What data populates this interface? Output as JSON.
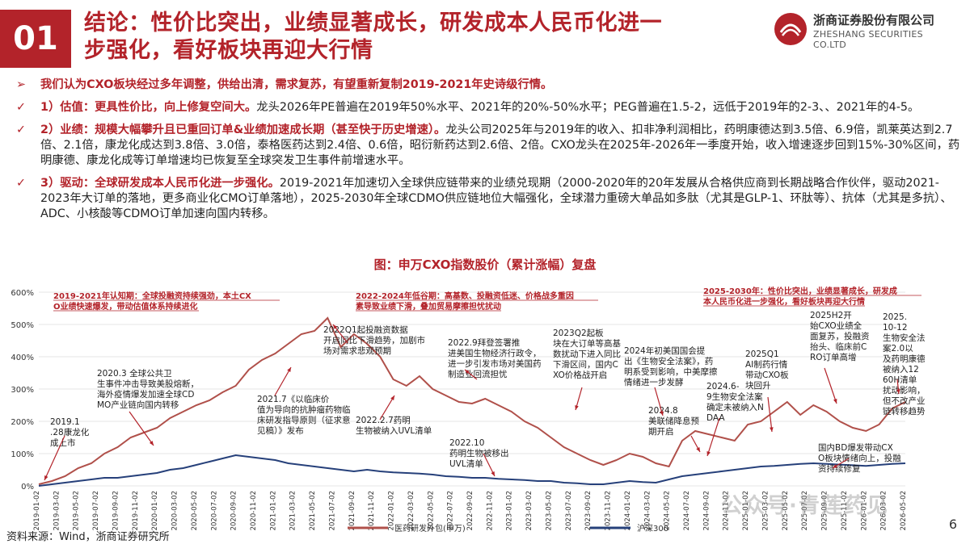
{
  "header": {
    "badge": "01",
    "title_line1": "结论：性价比突出，业绩显著成长，研发成本人民币化进一",
    "title_line2": "步强化，看好板块再迎大行情",
    "logo_name": "浙商证券股份有限公司",
    "logo_en": "ZHESHANG SECURITIES CO.LTD"
  },
  "bullets": [
    {
      "check": "➢",
      "head": "我们认为CXO板块经过多年调整，供给出清，需求复苏，有望重新复制2019-2021年史诗级行情。",
      "body": ""
    },
    {
      "check": "✓",
      "head": "1）估值：更具性价比，向上修复空间大。",
      "body": "龙头2026年PE普遍在2019年50%水平、2021年的20%-50%水平；PEG普遍在1.5-2，远低于2019年的2-3、、2021年的4-5。"
    },
    {
      "check": "✓",
      "head": "2）业绩：规模大幅攀升且已重回订单&业绩加速成长期（甚至快于历史增速）。",
      "body": "龙头公司2025年与2019年的收入、扣非净利润相比，药明康德达到3.5倍、6.9倍，凯莱英达到2.7倍、2.1倍，康龙化成达到3.8倍、3.0倍，泰格医药达到2.4倍、0.6倍，昭衍新药达到2.6倍、2倍。CXO龙头在2025年-2026年一季度开始，收入增速逐步回到15%-30%区间，药明康德、康龙化成等订单增速均已恢复至全球突发卫生事件前增速水平。"
    },
    {
      "check": "✓",
      "head": "3）驱动：全球研发成本人民币化进一步强化。",
      "body": "2019-2021年加速切入全球供应链带来的业绩兑现期（2000-2020年的20年发展从合格供应商到长期战略合作伙伴，驱动2021-2023年大订单的落地，更多商业化CMO订单落地），2025-2030年全球CDMO供应链地位大幅强化，全球潜力重磅大单品如多肽（尤其是GLP-1、环肽等）、抗体（尤其是多抗）、ADC、小核酸等CDMO订单加速向国内转移。"
    }
  ],
  "chart_title": "图：申万CXO指数股价（累计涨幅）复盘",
  "chart_data": {
    "type": "line",
    "yticks": [
      "600%",
      "500%",
      "400%",
      "300%",
      "200%",
      "100%",
      "0%"
    ],
    "ylim": [
      0,
      600
    ],
    "xticks": [
      "2019-01-02",
      "2019-03-02",
      "2019-05-02",
      "2019-07-02",
      "2019-09-02",
      "2019-11-02",
      "2020-01-02",
      "2020-03-02",
      "2020-05-02",
      "2020-07-02",
      "2020-09-02",
      "2020-11-02",
      "2021-01-02",
      "2021-03-02",
      "2021-05-02",
      "2021-07-02",
      "2021-09-02",
      "2021-11-02",
      "2022-01-02",
      "2022-03-02",
      "2022-05-02",
      "2022-07-02",
      "2022-09-02",
      "2022-11-02",
      "2023-01-02",
      "2023-03-02",
      "2023-05-02",
      "2023-07-02",
      "2023-09-02",
      "2023-11-02",
      "2024-01-02",
      "2024-03-02",
      "2024-05-02",
      "2024-07-02",
      "2024-09-02",
      "2024-11-02",
      "2025-01-02",
      "2025-03-02",
      "2025-05-02",
      "2025-07-02",
      "2025-09-02",
      "2025-11-02",
      "2026-01-02",
      "2026-03-02",
      "2026-05-02"
    ],
    "series": [
      {
        "name": "医药研发外包(申万)",
        "color": "#b0504a",
        "values": [
          5,
          15,
          30,
          55,
          70,
          100,
          120,
          150,
          165,
          180,
          210,
          230,
          250,
          265,
          290,
          310,
          360,
          390,
          410,
          440,
          470,
          480,
          520,
          430,
          470,
          440,
          400,
          330,
          310,
          340,
          300,
          280,
          260,
          255,
          270,
          250,
          230,
          200,
          180,
          150,
          120,
          100,
          80,
          65,
          80,
          100,
          90,
          70,
          60,
          140,
          170,
          160,
          150,
          140,
          190,
          200,
          230,
          260,
          220,
          250,
          230,
          200,
          180,
          170,
          190,
          240,
          260
        ]
      },
      {
        "name": "沪深300",
        "color": "#26407a",
        "values": [
          0,
          5,
          10,
          15,
          20,
          25,
          25,
          30,
          35,
          40,
          50,
          55,
          65,
          75,
          85,
          95,
          90,
          85,
          80,
          70,
          65,
          60,
          55,
          50,
          45,
          50,
          45,
          42,
          40,
          38,
          35,
          30,
          28,
          25,
          25,
          22,
          20,
          18,
          15,
          15,
          10,
          8,
          5,
          5,
          10,
          15,
          12,
          10,
          20,
          30,
          35,
          40,
          45,
          50,
          55,
          60,
          62,
          65,
          68,
          70,
          68,
          66,
          64,
          62,
          65,
          68,
          70
        ]
      }
    ]
  },
  "annotations": {
    "period1": "2019-2021年认知期：全球投融资持续强劲，本土CXO业绩快速爆发，带动估值体系持续进化",
    "period2": "2022-2024年低谷期：高基数、投融资低迷、价格战多重因素导致业绩下滑，叠加贸易摩擦担忧扰动",
    "period3": "2025-2030年：性价比突出，业绩显著成长，研发成本人民币化进一步强化，看好板块再迎大行情",
    "a1": "2019.1.28康龙化成上市",
    "a2": "2020.3 全球公共卫生事件冲击导致美股熔断，海外疫情爆发加速全球CDMO产业链向国内转移",
    "a3": "2021.7《以临床价值为导向的抗肿瘤药物临床研发指导原则（征求意见稿）》发布",
    "a4": "2022Q1起投融资数据开启同比下滑趋势，加剧市场对需求悲观预期",
    "a5": "2022.2.7药明生物被纳入UVL清单",
    "a6": "2022.9拜登签署推进美国生物经济行政令，进一步引发市场对美国药制造业回流担忧",
    "a7": "2022.10药明生物被移出UVL清单",
    "a8": "2023Q2起板块在大订单等高基数扰动下进入同比下滑区间，国内CXO价格战开启",
    "a9": "2024年初美国国会提出《生物安全法案》，药明系受到影响，中美摩擦情绪进一步发酵",
    "a10": "2024.8美联储降息预期开启",
    "a11": "2024.6-9生物安全法案确定未被纳入NDAA",
    "a12": "2025Q1AI制药行情带动CXO板块回升",
    "a13": "2025H2开始CXO业绩全面复苏，投融资抬头、临床前CRO订单高增",
    "a14": "2025.10-12生物安全法案2.0以及药明康德被纳入1260H清单扰动影响，但不改产业链转移趋势",
    "a15": "国内BD爆发带动CXO板块情绪向上，投融资持续修复"
  },
  "footer": {
    "source": "资料来源：Wind，浙商证券研究所",
    "page": "6",
    "watermark": "公众号·青莲药见"
  },
  "colors": {
    "accent": "#b3232a",
    "series1": "#b0504a",
    "series2": "#26407a"
  }
}
